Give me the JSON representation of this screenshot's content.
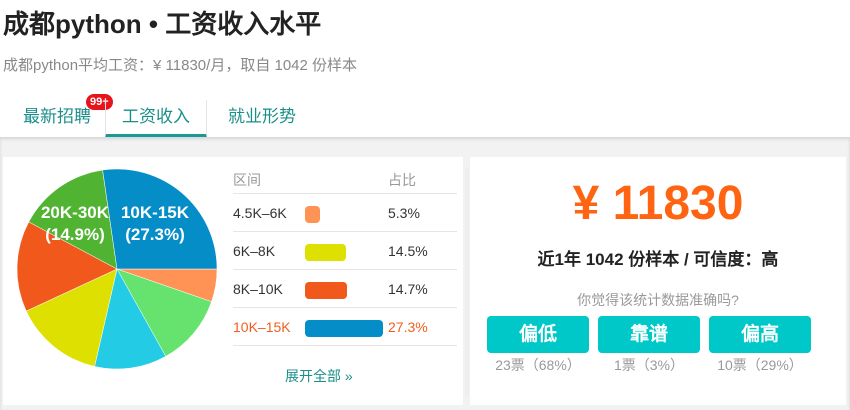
{
  "header": {
    "title": "成都python • 工资收入水平",
    "subtitle": "成都python平均工资：¥ 11830/月，取自 1042 份样本"
  },
  "tabs": [
    {
      "label": "最新招聘",
      "badge": "99+"
    },
    {
      "label": "工资收入",
      "active": true
    },
    {
      "label": "就业形势"
    }
  ],
  "colors": {
    "accent": "#1a9a94",
    "highlight": "#f25d1f",
    "salary": "#ff6412",
    "vote_button": "#00c8c8"
  },
  "chart_data": {
    "type": "pie",
    "start": "3 o'clock, clockwise",
    "slices": [
      {
        "name": "4.5K–6K",
        "value": 5.3,
        "color": "#ff9356"
      },
      {
        "name": "",
        "value": 11.6,
        "color": "#66e36f"
      },
      {
        "name": "",
        "value": 11.7,
        "color": "#24cbe5"
      },
      {
        "name": "6K–8K",
        "value": 14.5,
        "color": "#dde000"
      },
      {
        "name": "8K–10K",
        "value": 14.7,
        "color": "#f0581c"
      },
      {
        "name": "20K-30K",
        "value": 14.9,
        "color": "#50b432",
        "label": "20K-30K",
        "label_pct": "(14.9%)"
      },
      {
        "name": "10K-15K",
        "value": 27.3,
        "color": "#058dc7",
        "label": "10K-15K",
        "label_pct": "(27.3%)"
      }
    ]
  },
  "table": {
    "headers": {
      "range": "区间",
      "share": "占比"
    },
    "rows": [
      {
        "range": "4.5K–6K",
        "share": "5.3%",
        "value": 5.3,
        "color": "#ff9356"
      },
      {
        "range": "6K–8K",
        "share": "14.5%",
        "value": 14.5,
        "color": "#dde000"
      },
      {
        "range": "8K–10K",
        "share": "14.7%",
        "value": 14.7,
        "color": "#f0581c"
      },
      {
        "range": "10K–15K",
        "share": "27.3%",
        "value": 27.3,
        "color": "#058dc7",
        "highlight": true
      }
    ],
    "expand_label": "展开全部 »"
  },
  "summary": {
    "average": "¥ 11830",
    "confidence": "近1年 1042 份样本 / 可信度：高",
    "question": "你觉得该统计数据准确吗?",
    "votes": [
      {
        "label": "偏低",
        "count": "23票（68%）"
      },
      {
        "label": "靠谱",
        "count": "1票（3%）"
      },
      {
        "label": "偏高",
        "count": "10票（29%）"
      }
    ]
  }
}
